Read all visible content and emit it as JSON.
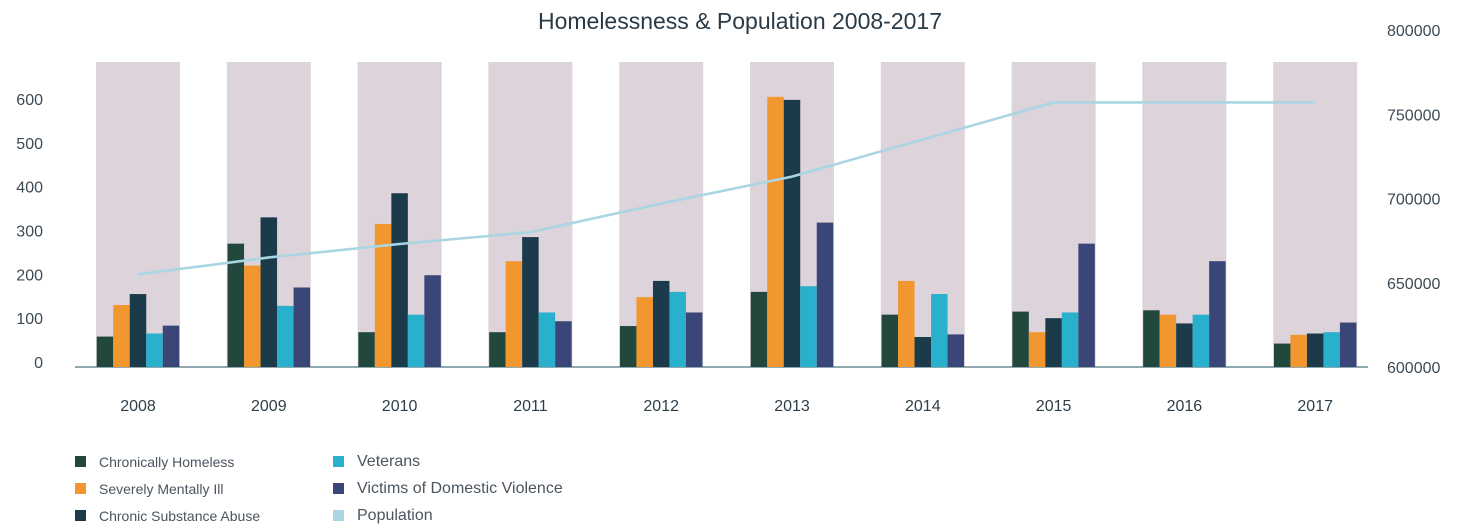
{
  "chart_data": {
    "type": "bar",
    "title": "Homelessness & Population 2008-2017",
    "categories": [
      "2008",
      "2009",
      "2010",
      "2011",
      "2012",
      "2013",
      "2014",
      "2015",
      "2016",
      "2017"
    ],
    "series": [
      {
        "name": "Chronically Homeless",
        "color": "#22473d",
        "values": [
          58,
          270,
          68,
          68,
          82,
          160,
          108,
          115,
          118,
          42
        ]
      },
      {
        "name": "Severely Mentally Ill",
        "color": "#f2962f",
        "values": [
          130,
          220,
          315,
          230,
          148,
          605,
          185,
          68,
          108,
          62
        ]
      },
      {
        "name": "Chronic Substance Abuse",
        "color": "#1c3b4a",
        "values": [
          155,
          330,
          385,
          285,
          185,
          598,
          57,
          100,
          88,
          65
        ]
      },
      {
        "name": "Veterans",
        "color": "#29b0cc",
        "values": [
          65,
          128,
          108,
          113,
          160,
          173,
          155,
          113,
          108,
          68
        ]
      },
      {
        "name": "Victims of Domestic Violence",
        "color": "#3a4677",
        "values": [
          83,
          170,
          198,
          93,
          113,
          318,
          63,
          270,
          230,
          90
        ]
      }
    ],
    "line_series": {
      "name": "Population",
      "color": "#a9d6e2",
      "axis": "right",
      "values": [
        655000,
        665000,
        673000,
        680000,
        697000,
        713000,
        735000,
        757000,
        757000,
        757000
      ]
    },
    "y_left": {
      "min": 0,
      "max": 600,
      "ticks": [
        "0",
        "100",
        "200",
        "300",
        "400",
        "500",
        "600"
      ]
    },
    "y_right": {
      "min": 600000,
      "max": 800000,
      "ticks": [
        "600000",
        "650000",
        "700000",
        "750000",
        "800000"
      ]
    },
    "background_band_color": "#ddd3da",
    "legend_position": "bottom-left"
  }
}
